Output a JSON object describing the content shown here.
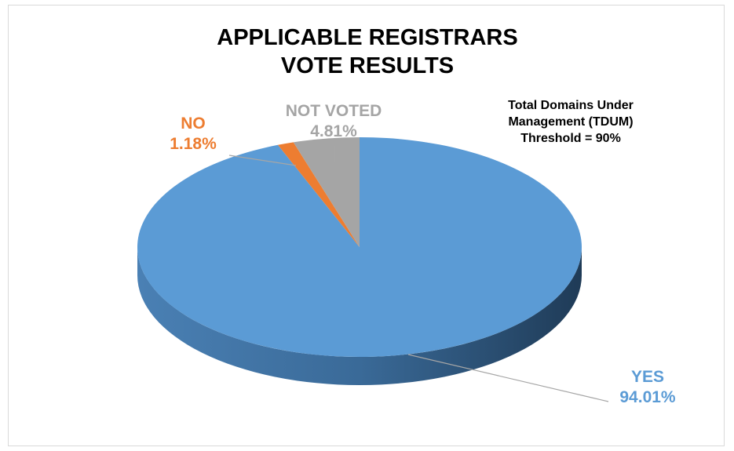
{
  "chart_data": {
    "type": "pie3d",
    "title": "APPLICABLE REGISTRARS VOTE RESULTS",
    "annotation": "Total Domains Under Management (TDUM) Threshold = 90%",
    "categories": [
      "YES",
      "NO",
      "NOT VOTED"
    ],
    "values": [
      94.01,
      1.18,
      4.81
    ],
    "value_labels": [
      "94.01%",
      "1.18%",
      "4.81%"
    ],
    "colors": [
      "#5b9bd5",
      "#ed7d31",
      "#a5a5a5"
    ]
  }
}
